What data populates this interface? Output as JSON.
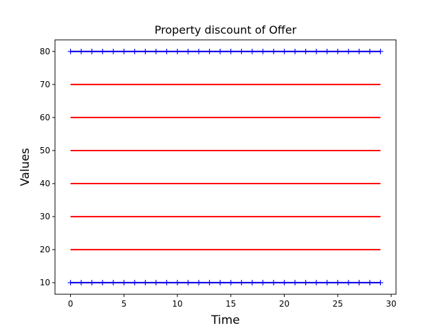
{
  "chart_data": {
    "type": "line",
    "title": "Property discount of Offer",
    "xlabel": "Time",
    "ylabel": "Values",
    "xlim": [
      -1.45,
      30.45
    ],
    "ylim": [
      6.5,
      83.5
    ],
    "x_ticks": [
      0,
      5,
      10,
      15,
      20,
      25,
      30
    ],
    "y_ticks": [
      10,
      20,
      30,
      40,
      50,
      60,
      70,
      80
    ],
    "grid": false,
    "x": [
      0,
      1,
      2,
      3,
      4,
      5,
      6,
      7,
      8,
      9,
      10,
      11,
      12,
      13,
      14,
      15,
      16,
      17,
      18,
      19,
      20,
      21,
      22,
      23,
      24,
      25,
      26,
      27,
      28,
      29
    ],
    "series": [
      {
        "values": [
          10,
          10,
          10,
          10,
          10,
          10,
          10,
          10,
          10,
          10,
          10,
          10,
          10,
          10,
          10,
          10,
          10,
          10,
          10,
          10,
          10,
          10,
          10,
          10,
          10,
          10,
          10,
          10,
          10,
          10
        ],
        "color": "#ff0000",
        "style": "line"
      },
      {
        "values": [
          20,
          20,
          20,
          20,
          20,
          20,
          20,
          20,
          20,
          20,
          20,
          20,
          20,
          20,
          20,
          20,
          20,
          20,
          20,
          20,
          20,
          20,
          20,
          20,
          20,
          20,
          20,
          20,
          20,
          20
        ],
        "color": "#ff0000",
        "style": "line"
      },
      {
        "values": [
          30,
          30,
          30,
          30,
          30,
          30,
          30,
          30,
          30,
          30,
          30,
          30,
          30,
          30,
          30,
          30,
          30,
          30,
          30,
          30,
          30,
          30,
          30,
          30,
          30,
          30,
          30,
          30,
          30,
          30
        ],
        "color": "#ff0000",
        "style": "line"
      },
      {
        "values": [
          40,
          40,
          40,
          40,
          40,
          40,
          40,
          40,
          40,
          40,
          40,
          40,
          40,
          40,
          40,
          40,
          40,
          40,
          40,
          40,
          40,
          40,
          40,
          40,
          40,
          40,
          40,
          40,
          40,
          40
        ],
        "color": "#ff0000",
        "style": "line"
      },
      {
        "values": [
          50,
          50,
          50,
          50,
          50,
          50,
          50,
          50,
          50,
          50,
          50,
          50,
          50,
          50,
          50,
          50,
          50,
          50,
          50,
          50,
          50,
          50,
          50,
          50,
          50,
          50,
          50,
          50,
          50,
          50
        ],
        "color": "#ff0000",
        "style": "line"
      },
      {
        "values": [
          60,
          60,
          60,
          60,
          60,
          60,
          60,
          60,
          60,
          60,
          60,
          60,
          60,
          60,
          60,
          60,
          60,
          60,
          60,
          60,
          60,
          60,
          60,
          60,
          60,
          60,
          60,
          60,
          60,
          60
        ],
        "color": "#ff0000",
        "style": "line"
      },
      {
        "values": [
          70,
          70,
          70,
          70,
          70,
          70,
          70,
          70,
          70,
          70,
          70,
          70,
          70,
          70,
          70,
          70,
          70,
          70,
          70,
          70,
          70,
          70,
          70,
          70,
          70,
          70,
          70,
          70,
          70,
          70
        ],
        "color": "#ff0000",
        "style": "line"
      },
      {
        "values": [
          80,
          80,
          80,
          80,
          80,
          80,
          80,
          80,
          80,
          80,
          80,
          80,
          80,
          80,
          80,
          80,
          80,
          80,
          80,
          80,
          80,
          80,
          80,
          80,
          80,
          80,
          80,
          80,
          80,
          80
        ],
        "color": "#ff0000",
        "style": "line"
      },
      {
        "values": [
          10,
          10,
          10,
          10,
          10,
          10,
          10,
          10,
          10,
          10,
          10,
          10,
          10,
          10,
          10,
          10,
          10,
          10,
          10,
          10,
          10,
          10,
          10,
          10,
          10,
          10,
          10,
          10,
          10,
          10
        ],
        "color": "#0000ff",
        "style": "plus-markers-line"
      },
      {
        "values": [
          80,
          80,
          80,
          80,
          80,
          80,
          80,
          80,
          80,
          80,
          80,
          80,
          80,
          80,
          80,
          80,
          80,
          80,
          80,
          80,
          80,
          80,
          80,
          80,
          80,
          80,
          80,
          80,
          80,
          80
        ],
        "color": "#0000ff",
        "style": "plus-markers-line"
      }
    ]
  }
}
